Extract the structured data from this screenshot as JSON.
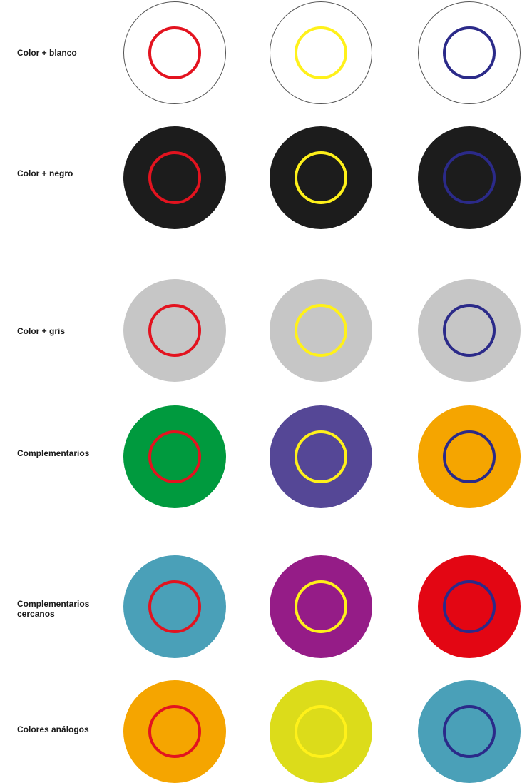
{
  "colors": {
    "ring_red": "#e3131f",
    "ring_yellow": "#fff11a",
    "ring_blue": "#2b2a89"
  },
  "rows": [
    {
      "label": "Color + blanco",
      "backgrounds": [
        "#ffffff",
        "#ffffff",
        "#ffffff"
      ],
      "outlined": true
    },
    {
      "label": "Color + negro",
      "backgrounds": [
        "#1c1c1c",
        "#1c1c1c",
        "#1c1c1c"
      ],
      "outlined": false
    },
    {
      "label": "Color + gris",
      "backgrounds": [
        "#c6c6c6",
        "#c6c6c6",
        "#c6c6c6"
      ],
      "outlined": false
    },
    {
      "label": "Complementarios",
      "backgrounds": [
        "#009a3e",
        "#554796",
        "#f5a500"
      ],
      "outlined": false
    },
    {
      "label": "Complementarios\ncercanos",
      "backgrounds": [
        "#4aa0b8",
        "#951c87",
        "#e30613"
      ],
      "outlined": false
    },
    {
      "label": "Colores análogos",
      "backgrounds": [
        "#f5a500",
        "#dcdc1a",
        "#4aa0b8"
      ],
      "outlined": false
    }
  ]
}
